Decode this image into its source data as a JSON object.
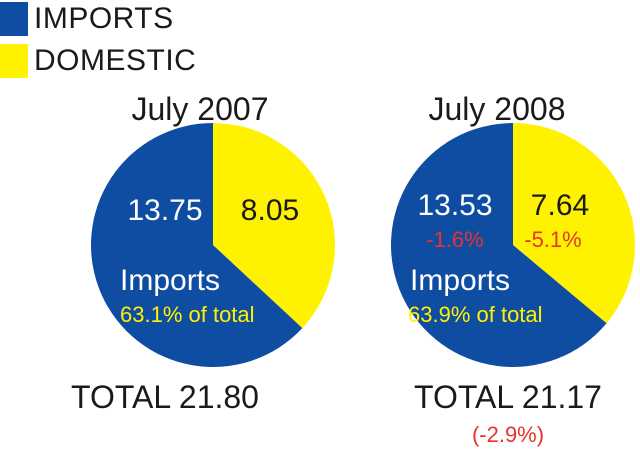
{
  "legend": [
    {
      "label": "IMPORTS",
      "color": "#0f4da2"
    },
    {
      "label": "DOMESTIC",
      "color": "#fff200"
    }
  ],
  "chart_data": [
    {
      "type": "pie",
      "title": "July 2007",
      "slices": [
        {
          "name": "IMPORTS",
          "value": 13.75,
          "label": "13.75",
          "color": "#0f4da2"
        },
        {
          "name": "DOMESTIC",
          "value": 8.05,
          "label": "8.05",
          "color": "#fff200"
        }
      ],
      "share_label": "Imports",
      "share_text": "63.1% of total",
      "total_text": "TOTAL 21.80",
      "total_change": ""
    },
    {
      "type": "pie",
      "title": "July 2008",
      "slices": [
        {
          "name": "IMPORTS",
          "value": 13.53,
          "label": "13.53",
          "change": "-1.6%",
          "color": "#0f4da2"
        },
        {
          "name": "DOMESTIC",
          "value": 7.64,
          "label": "7.64",
          "change": "-5.1%",
          "color": "#fff200"
        }
      ],
      "share_label": "Imports",
      "share_text": "63.9% of total",
      "total_text": "TOTAL 21.17",
      "total_change": "(-2.9%)"
    }
  ]
}
